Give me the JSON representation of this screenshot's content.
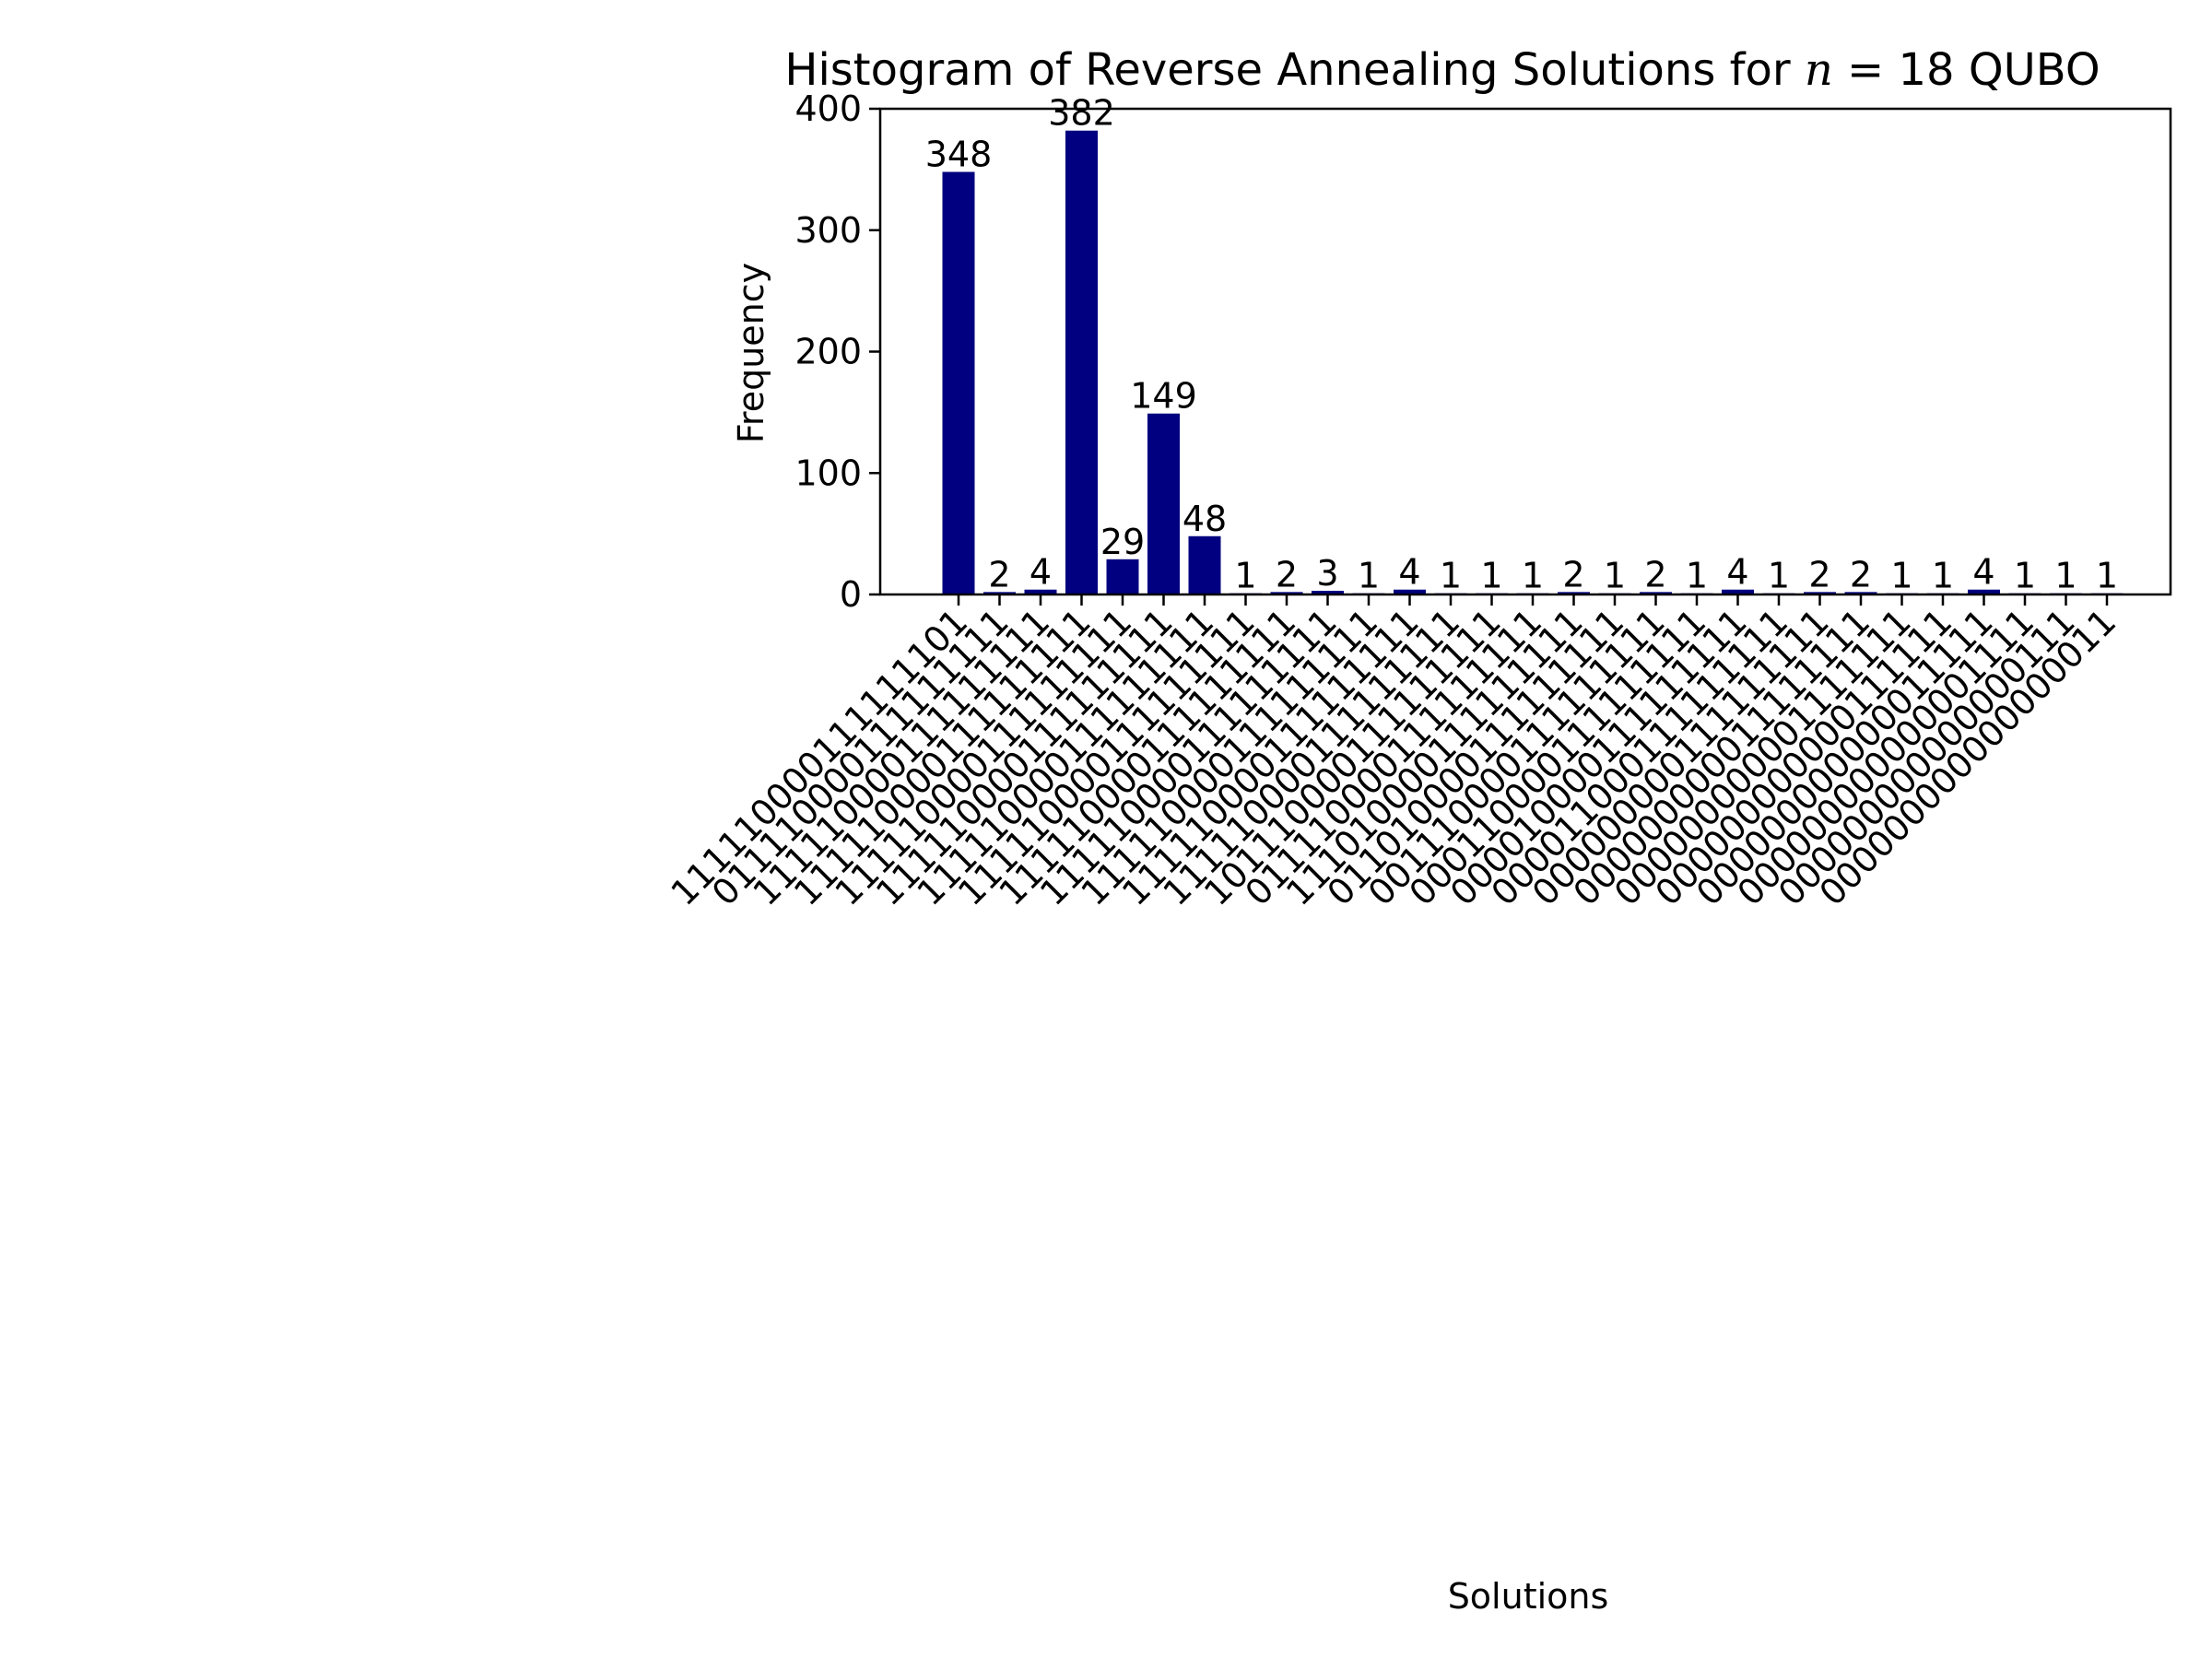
{
  "chart_data": {
    "type": "bar",
    "title": "Histogram of Reverse Annealing Solutions for n = 18 QUBO",
    "title_parts": {
      "prefix": "Histogram of Reverse Annealing Solutions for ",
      "var": "n",
      "suffix": " = 18 QUBO"
    },
    "xlabel": "Solutions",
    "ylabel": "Frequency",
    "ylim": [
      0,
      400
    ],
    "yticks": [
      0,
      100,
      200,
      300,
      400
    ],
    "bar_color": "#000080",
    "grid": false,
    "categories": [
      "111110000111111101",
      "011110000111111111",
      "111110000111111111",
      "111110000111111111",
      "111110000111111111",
      "111110000111111111",
      "111110000111111111",
      "111110000111111111",
      "111110000111111111",
      "111110000111111111",
      "111110000111111111",
      "111110000111111111",
      "111110000111111111",
      "101110000111111111",
      "011110000111111111",
      "111010000111111111",
      "011010000111111111",
      "001110000111111111",
      "000110000111111111",
      "000010000111111111",
      "000011000111111111",
      "000000000111111111",
      "000000000011111111",
      "000000000001111111",
      "000000000000111111",
      "000000000000011111",
      "000000000000001111",
      "000000000000000111",
      "000000000000000011"
    ],
    "values": [
      348,
      2,
      4,
      382,
      29,
      149,
      48,
      1,
      2,
      3,
      1,
      4,
      1,
      1,
      1,
      2,
      1,
      2,
      1,
      4,
      1,
      2,
      2,
      1,
      1,
      4,
      1,
      1,
      1
    ]
  }
}
